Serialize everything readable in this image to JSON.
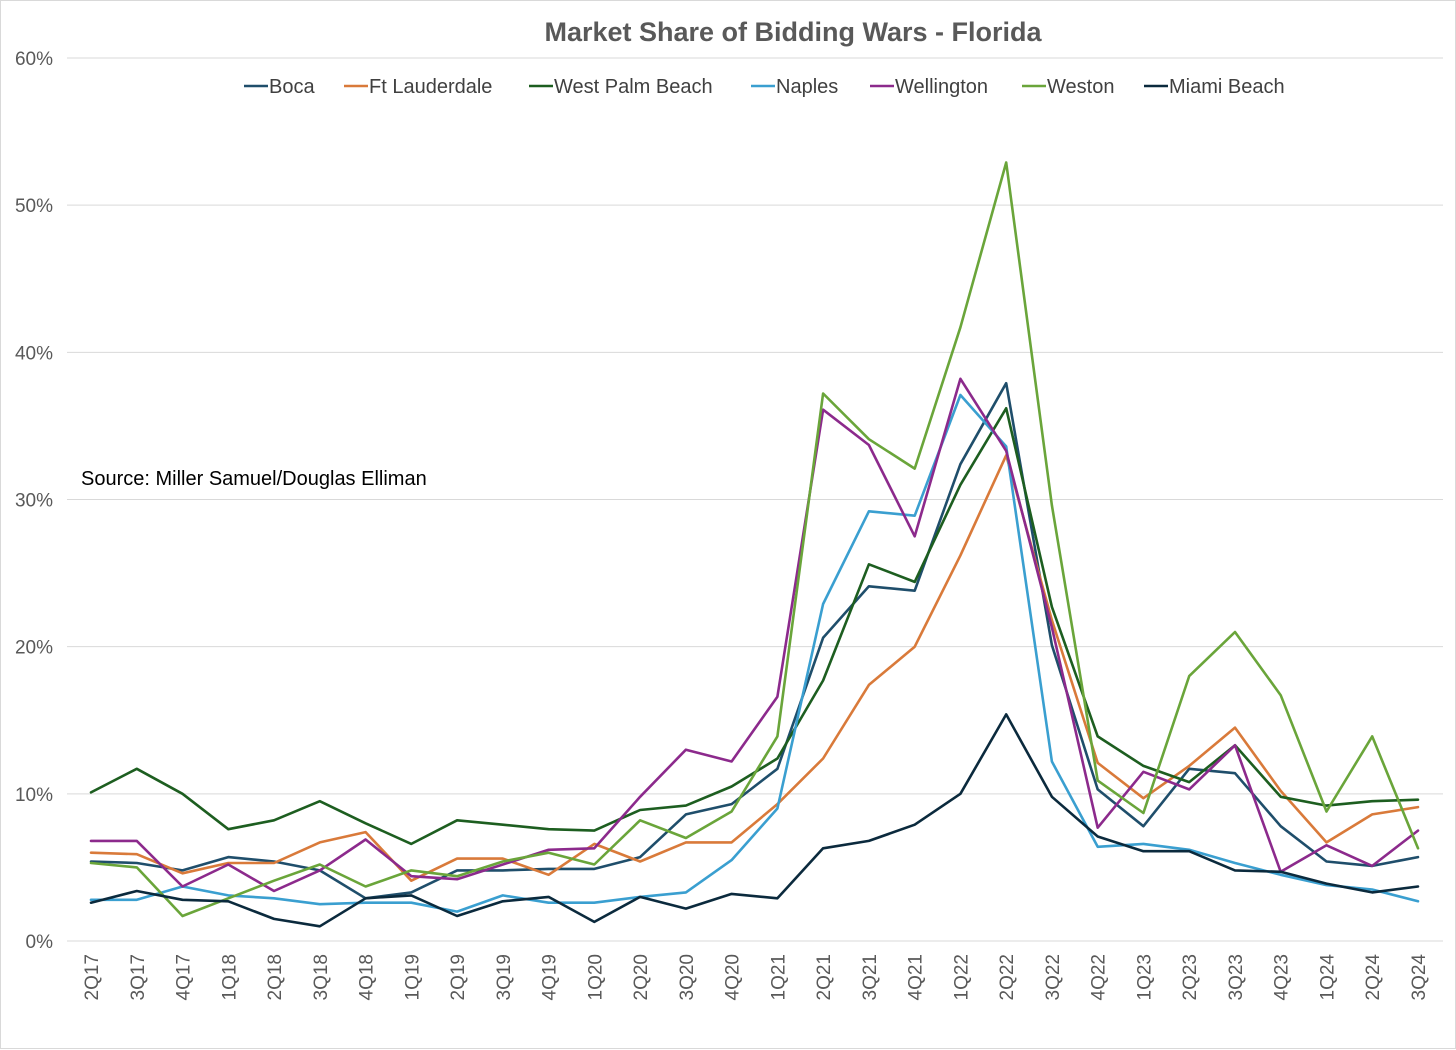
{
  "chart_data": {
    "type": "line",
    "title": "Market Share of Bidding Wars - Florida",
    "xlabel": "",
    "ylabel": "",
    "ylim": [
      0,
      60
    ],
    "yticks": [
      "0%",
      "10%",
      "20%",
      "30%",
      "40%",
      "50%",
      "60%"
    ],
    "ytick_values": [
      0,
      10,
      20,
      30,
      40,
      50,
      60
    ],
    "grid": true,
    "legend_position": "top",
    "annotation": "Source: Miller Samuel/Douglas Elliman",
    "categories": [
      "2Q17",
      "3Q17",
      "4Q17",
      "1Q18",
      "2Q18",
      "3Q18",
      "4Q18",
      "1Q19",
      "2Q19",
      "3Q19",
      "4Q19",
      "1Q20",
      "2Q20",
      "3Q20",
      "4Q20",
      "1Q21",
      "2Q21",
      "3Q21",
      "4Q21",
      "1Q22",
      "2Q22",
      "3Q22",
      "4Q22",
      "1Q23",
      "2Q23",
      "3Q23",
      "4Q23",
      "1Q24",
      "2Q24",
      "3Q24"
    ],
    "series": [
      {
        "name": "Boca",
        "color": "#1f4e6b",
        "values": [
          5.4,
          5.3,
          4.8,
          5.7,
          5.4,
          4.8,
          2.9,
          3.3,
          4.8,
          4.8,
          4.9,
          4.9,
          5.7,
          8.6,
          9.3,
          11.7,
          20.6,
          24.1,
          23.8,
          32.4,
          37.9,
          20.1,
          10.3,
          7.8,
          11.7,
          11.4,
          7.8,
          5.4,
          5.1,
          5.7
        ]
      },
      {
        "name": "Ft Lauderdale",
        "color": "#d97a3a",
        "values": [
          6.0,
          5.9,
          4.6,
          5.3,
          5.3,
          6.7,
          7.4,
          4.1,
          5.6,
          5.6,
          4.5,
          6.6,
          5.4,
          6.7,
          6.7,
          9.3,
          12.4,
          17.4,
          20.0,
          26.2,
          33.0,
          21.8,
          12.1,
          9.7,
          11.9,
          14.5,
          10.2,
          6.7,
          8.6,
          9.1
        ]
      },
      {
        "name": "West Palm Beach",
        "color": "#1d5e20",
        "values": [
          10.1,
          11.7,
          10.0,
          7.6,
          8.2,
          9.5,
          8.0,
          6.6,
          8.2,
          7.9,
          7.6,
          7.5,
          8.9,
          9.2,
          10.5,
          12.4,
          17.7,
          25.6,
          24.4,
          31.0,
          36.2,
          22.7,
          13.9,
          11.9,
          10.8,
          13.3,
          9.8,
          9.2,
          9.5,
          9.6
        ]
      },
      {
        "name": "Naples",
        "color": "#3a9fd0",
        "values": [
          2.8,
          2.8,
          3.7,
          3.1,
          2.9,
          2.5,
          2.6,
          2.6,
          2.0,
          3.1,
          2.6,
          2.6,
          3.0,
          3.3,
          5.5,
          9.0,
          22.9,
          29.2,
          28.9,
          37.1,
          33.6,
          12.2,
          6.4,
          6.6,
          6.2,
          5.3,
          4.5,
          3.8,
          3.5,
          2.7
        ]
      },
      {
        "name": "Wellington",
        "color": "#8c2a8c",
        "values": [
          6.8,
          6.8,
          3.7,
          5.2,
          3.4,
          4.8,
          6.9,
          4.4,
          4.2,
          5.2,
          6.2,
          6.3,
          9.8,
          13.0,
          12.2,
          16.6,
          36.1,
          33.7,
          27.5,
          38.2,
          33.3,
          21.3,
          7.7,
          11.5,
          10.3,
          13.3,
          4.7,
          6.5,
          5.1,
          7.5
        ]
      },
      {
        "name": "Weston",
        "color": "#6aa53a",
        "values": [
          5.3,
          5.0,
          1.7,
          2.9,
          4.1,
          5.2,
          3.7,
          4.8,
          4.4,
          5.4,
          6.0,
          5.2,
          8.2,
          7.0,
          8.8,
          13.9,
          37.2,
          34.1,
          32.1,
          41.7,
          52.9,
          29.6,
          10.9,
          8.7,
          18.0,
          21.0,
          16.7,
          8.8,
          13.9,
          6.3
        ]
      },
      {
        "name": "Miami Beach",
        "color": "#0b2a3d",
        "values": [
          2.6,
          3.4,
          2.8,
          2.7,
          1.5,
          1.0,
          2.9,
          3.1,
          1.7,
          2.7,
          3.0,
          1.3,
          3.0,
          2.2,
          3.2,
          2.9,
          6.3,
          6.8,
          7.9,
          10.0,
          15.4,
          9.8,
          7.1,
          6.1,
          6.1,
          4.8,
          4.7,
          3.9,
          3.3,
          3.7
        ]
      }
    ]
  }
}
